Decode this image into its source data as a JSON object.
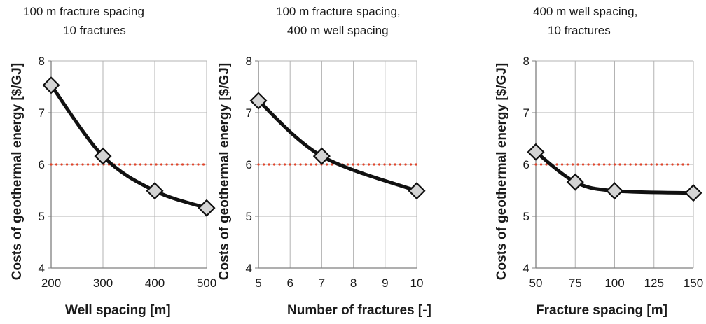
{
  "chart_data": [
    {
      "type": "line",
      "title": [
        "100 m fracture spacing",
        "10 fractures"
      ],
      "xlabel": "Well spacing [m]",
      "ylabel": "Costs of geothermal energy [$/GJ]",
      "x": [
        200,
        300,
        400,
        500
      ],
      "values": [
        7.53,
        6.16,
        5.49,
        5.16
      ],
      "reference_line": 6,
      "xticks": [
        "200",
        "300",
        "400",
        "500"
      ],
      "xlim": [
        200,
        500
      ],
      "yticks": [
        "4",
        "5",
        "6",
        "7",
        "8"
      ],
      "ylim": [
        4,
        8
      ],
      "grid": true
    },
    {
      "type": "line",
      "title": [
        "100 m fracture spacing,",
        "400 m well spacing"
      ],
      "xlabel": "Number of fractures [-]",
      "ylabel": "Costs of geothermal energy [$/GJ]",
      "x": [
        5,
        7,
        10
      ],
      "values": [
        7.23,
        6.16,
        5.49
      ],
      "reference_line": 6,
      "xticks": [
        "5",
        "6",
        "7",
        "8",
        "9",
        "10"
      ],
      "xlim": [
        5,
        10
      ],
      "yticks": [
        "4",
        "5",
        "6",
        "7",
        "8"
      ],
      "ylim": [
        4,
        8
      ],
      "grid": true
    },
    {
      "type": "line",
      "title": [
        "400 m well spacing,",
        "10 fractures"
      ],
      "xlabel": "Fracture spacing [m]",
      "ylabel": "Costs of geothermal energy [$/GJ]",
      "x": [
        50,
        75,
        100,
        150
      ],
      "values": [
        6.24,
        5.66,
        5.49,
        5.45
      ],
      "reference_line": 6,
      "xticks": [
        "50",
        "75",
        "100",
        "125",
        "150"
      ],
      "xlim": [
        50,
        150
      ],
      "yticks": [
        "4",
        "5",
        "6",
        "7",
        "8"
      ],
      "ylim": [
        4,
        8
      ],
      "grid": true
    }
  ],
  "colors": {
    "line": "#111111",
    "marker_fill": "#d4d4d4",
    "marker_stroke": "#111111",
    "reference": "#e0442a",
    "grid": "#b3b3b3",
    "axis": "#7f7f7f"
  }
}
